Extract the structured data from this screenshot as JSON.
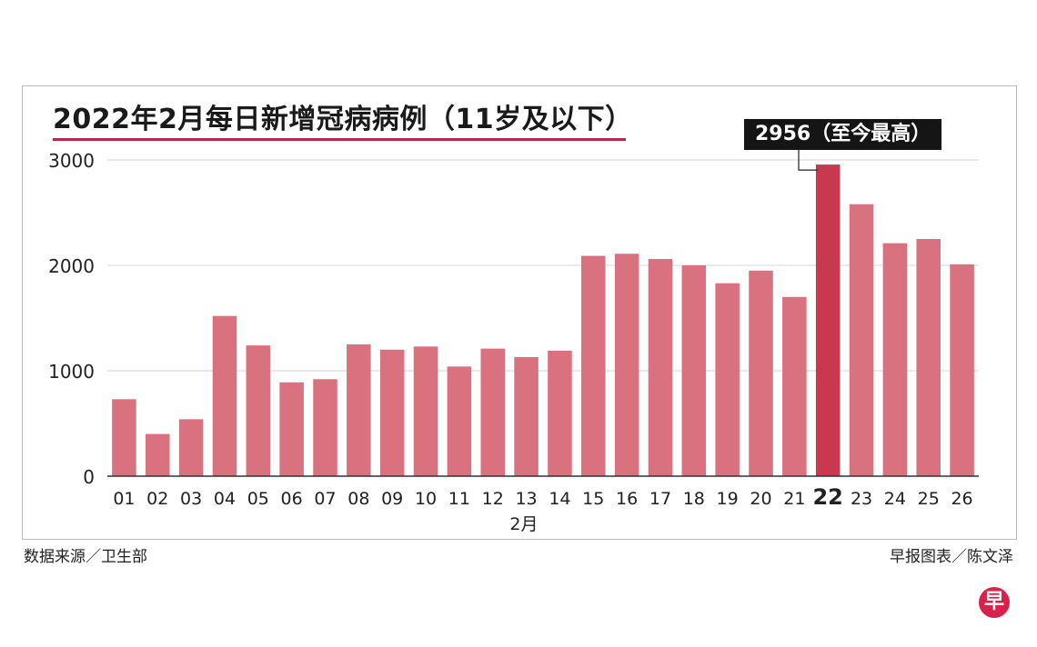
{
  "chart_data": {
    "type": "bar",
    "title": "2022年2月每日新增冠病病例（11岁及以下）",
    "xlabel": "2月",
    "ylabel": "",
    "ylim": [
      0,
      3000
    ],
    "yticks": [
      "0",
      "1000",
      "2000",
      "3000"
    ],
    "categories": [
      "01",
      "02",
      "03",
      "04",
      "05",
      "06",
      "07",
      "08",
      "09",
      "10",
      "11",
      "12",
      "13",
      "14",
      "15",
      "16",
      "17",
      "18",
      "19",
      "20",
      "21",
      "22",
      "23",
      "24",
      "25",
      "26"
    ],
    "values": [
      730,
      400,
      540,
      1520,
      1240,
      890,
      920,
      1250,
      1200,
      1230,
      1040,
      1210,
      1130,
      1190,
      2090,
      2110,
      2060,
      2000,
      1830,
      1950,
      1700,
      2956,
      2580,
      2210,
      2250,
      2010
    ],
    "highlight_index": 21,
    "annotation": "2956（至今最高）",
    "grid": true,
    "colors": {
      "bar": "#d9717f",
      "highlight": "#c8384f",
      "grid": "#d6d6d6",
      "axis": "#333333"
    }
  },
  "footer": {
    "source": "数据来源／卫生部",
    "credit": "早报图表／陈文泽"
  },
  "logo": {
    "text": "早"
  }
}
